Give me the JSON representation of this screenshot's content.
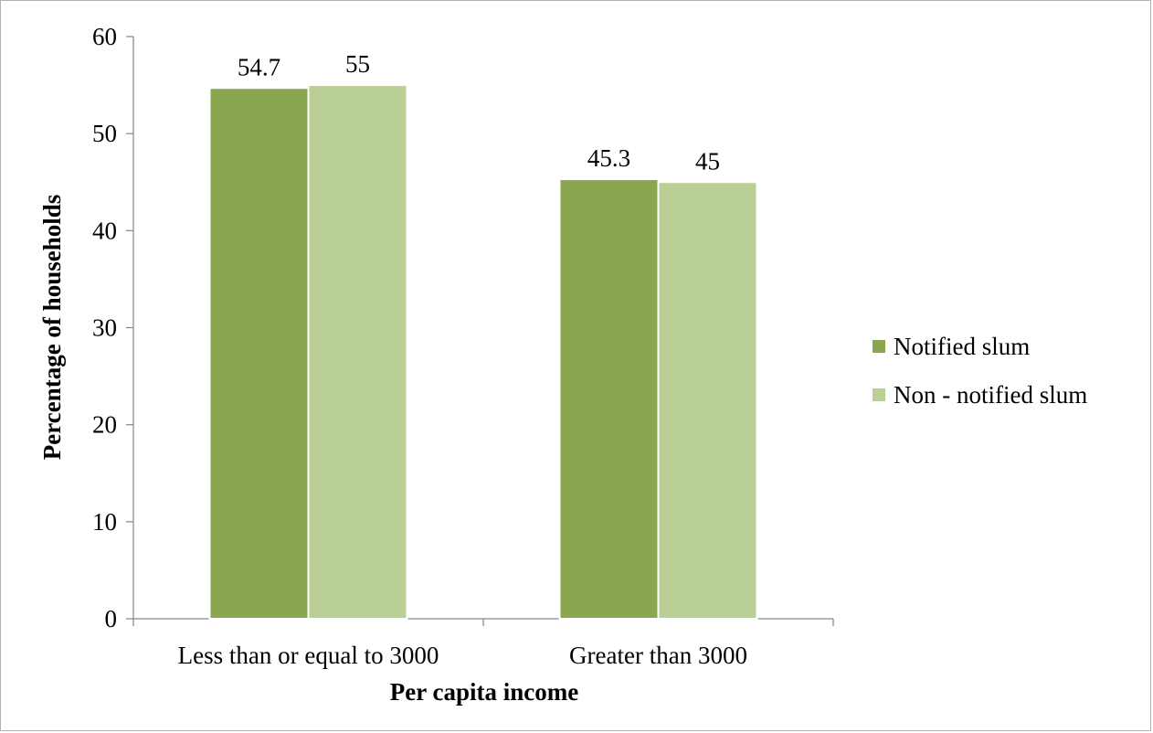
{
  "chart_data": {
    "type": "bar",
    "categories": [
      "Less than or equal to 3000",
      "Greater than 3000"
    ],
    "series": [
      {
        "name": "Notified slum",
        "values": [
          54.7,
          45.3
        ],
        "color": "#8aa64e"
      },
      {
        "name": "Non - notified slum",
        "values": [
          55,
          45
        ],
        "color": "#b9cf96"
      }
    ],
    "title": "",
    "xlabel": "Per capita income",
    "ylabel": "Percentage of households",
    "ylim": [
      0,
      60
    ],
    "yticks": [
      0,
      10,
      20,
      30,
      40,
      50,
      60
    ],
    "grid": false,
    "legend_position": "right"
  }
}
